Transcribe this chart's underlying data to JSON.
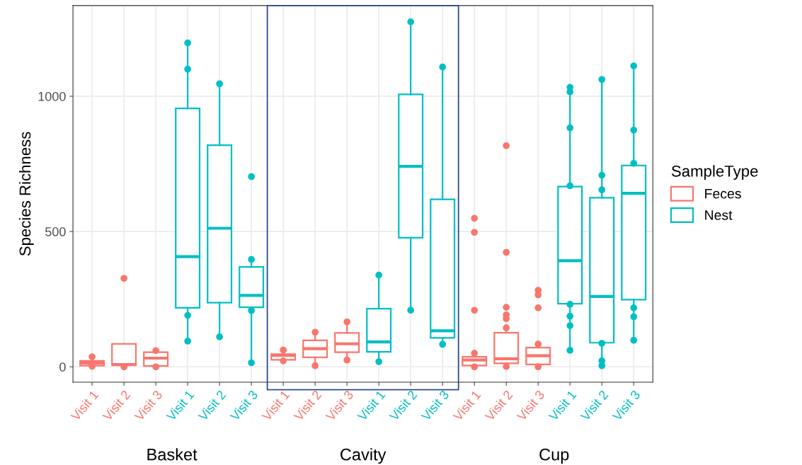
{
  "chart_data": {
    "type": "box",
    "ylabel": "Species Richness",
    "legend_title": "SampleType",
    "categories": [
      "Visit 1",
      "Visit 2",
      "Visit 3",
      "Visit 1",
      "Visit 2",
      "Visit 3",
      "Visit 1",
      "Visit 2",
      "Visit 3",
      "Visit 1",
      "Visit 2",
      "Visit 3",
      "Visit 1",
      "Visit 2",
      "Visit 3",
      "Visit 1",
      "Visit 2",
      "Visit 3"
    ],
    "annotations": [
      "Basket",
      "Cavity",
      "Cup"
    ],
    "ylim": [
      -57,
      1335
    ],
    "yticks": [
      0,
      500,
      1000
    ],
    "grid": true,
    "legend": "right",
    "series": [
      {
        "name": "Feces",
        "color": "#f8766d",
        "boxes": [
          {
            "low": 2,
            "q1": 4,
            "median": 14,
            "q3": 22,
            "high": 37,
            "outliers": [
              37,
              2
            ]
          },
          {
            "low": 0,
            "q1": 6,
            "median": 8,
            "q3": 85,
            "high": 85,
            "outliers": [
              327,
              0
            ]
          },
          {
            "low": 0,
            "q1": 3,
            "median": 32,
            "q3": 54,
            "high": 60,
            "outliers": [
              60,
              0
            ]
          },
          null,
          null,
          null,
          {
            "low": 22,
            "q1": 26,
            "median": 42,
            "q3": 47,
            "high": 62,
            "outliers": [
              62,
              22
            ]
          },
          {
            "low": 4,
            "q1": 35,
            "median": 67,
            "q3": 98,
            "high": 128,
            "outliers": [
              128,
              4
            ]
          },
          {
            "low": 25,
            "q1": 54,
            "median": 85,
            "q3": 125,
            "high": 166,
            "outliers": [
              166,
              25
            ]
          },
          null,
          null,
          null,
          {
            "low": 0,
            "q1": 5,
            "median": 25,
            "q3": 37,
            "high": 50,
            "outliers": [
              549,
              497,
              209,
              50,
              0
            ]
          },
          {
            "low": 1,
            "q1": 13,
            "median": 30,
            "q3": 126,
            "high": 144,
            "outliers": [
              817,
              423,
              220,
              192,
              178,
              144,
              1
            ]
          },
          {
            "low": 0,
            "q1": 9,
            "median": 41,
            "q3": 71,
            "high": 84,
            "outliers": [
              283,
              266,
              218,
              84,
              0
            ]
          },
          null,
          null,
          null
        ]
      },
      {
        "name": "Nest",
        "color": "#00bfc4",
        "boxes": [
          null,
          null,
          null,
          {
            "low": 95,
            "q1": 218,
            "median": 407,
            "q3": 955,
            "high": 1197,
            "outliers": [
              1197,
              1100,
              190,
              95
            ]
          },
          {
            "low": 111,
            "q1": 237,
            "median": 512,
            "q3": 819,
            "high": 1046,
            "outliers": [
              1046,
              111
            ]
          },
          {
            "low": 15,
            "q1": 220,
            "median": 264,
            "q3": 369,
            "high": 397,
            "outliers": [
              703,
              397,
              208,
              15
            ]
          },
          null,
          null,
          null,
          {
            "low": 19,
            "q1": 55,
            "median": 92,
            "q3": 215,
            "high": 339,
            "outliers": [
              339,
              19
            ]
          },
          {
            "low": 209,
            "q1": 477,
            "median": 741,
            "q3": 1007,
            "high": 1275,
            "outliers": [
              1275,
              209
            ]
          },
          {
            "low": 83,
            "q1": 107,
            "median": 133,
            "q3": 619,
            "high": 1108,
            "outliers": [
              1108,
              83
            ]
          },
          null,
          null,
          null,
          {
            "low": 61,
            "q1": 233,
            "median": 392,
            "q3": 666,
            "high": 1033,
            "outliers": [
              1033,
              1016,
              883,
              669,
              231,
              187,
              152,
              61
            ]
          },
          {
            "low": 4,
            "q1": 89,
            "median": 260,
            "q3": 625,
            "high": 1062,
            "outliers": [
              1062,
              708,
              654,
              87,
              22,
              4
            ]
          },
          {
            "low": 98,
            "q1": 248,
            "median": 641,
            "q3": 744,
            "high": 1112,
            "outliers": [
              1112,
              875,
              752,
              218,
              185,
              98
            ]
          }
        ]
      }
    ]
  }
}
